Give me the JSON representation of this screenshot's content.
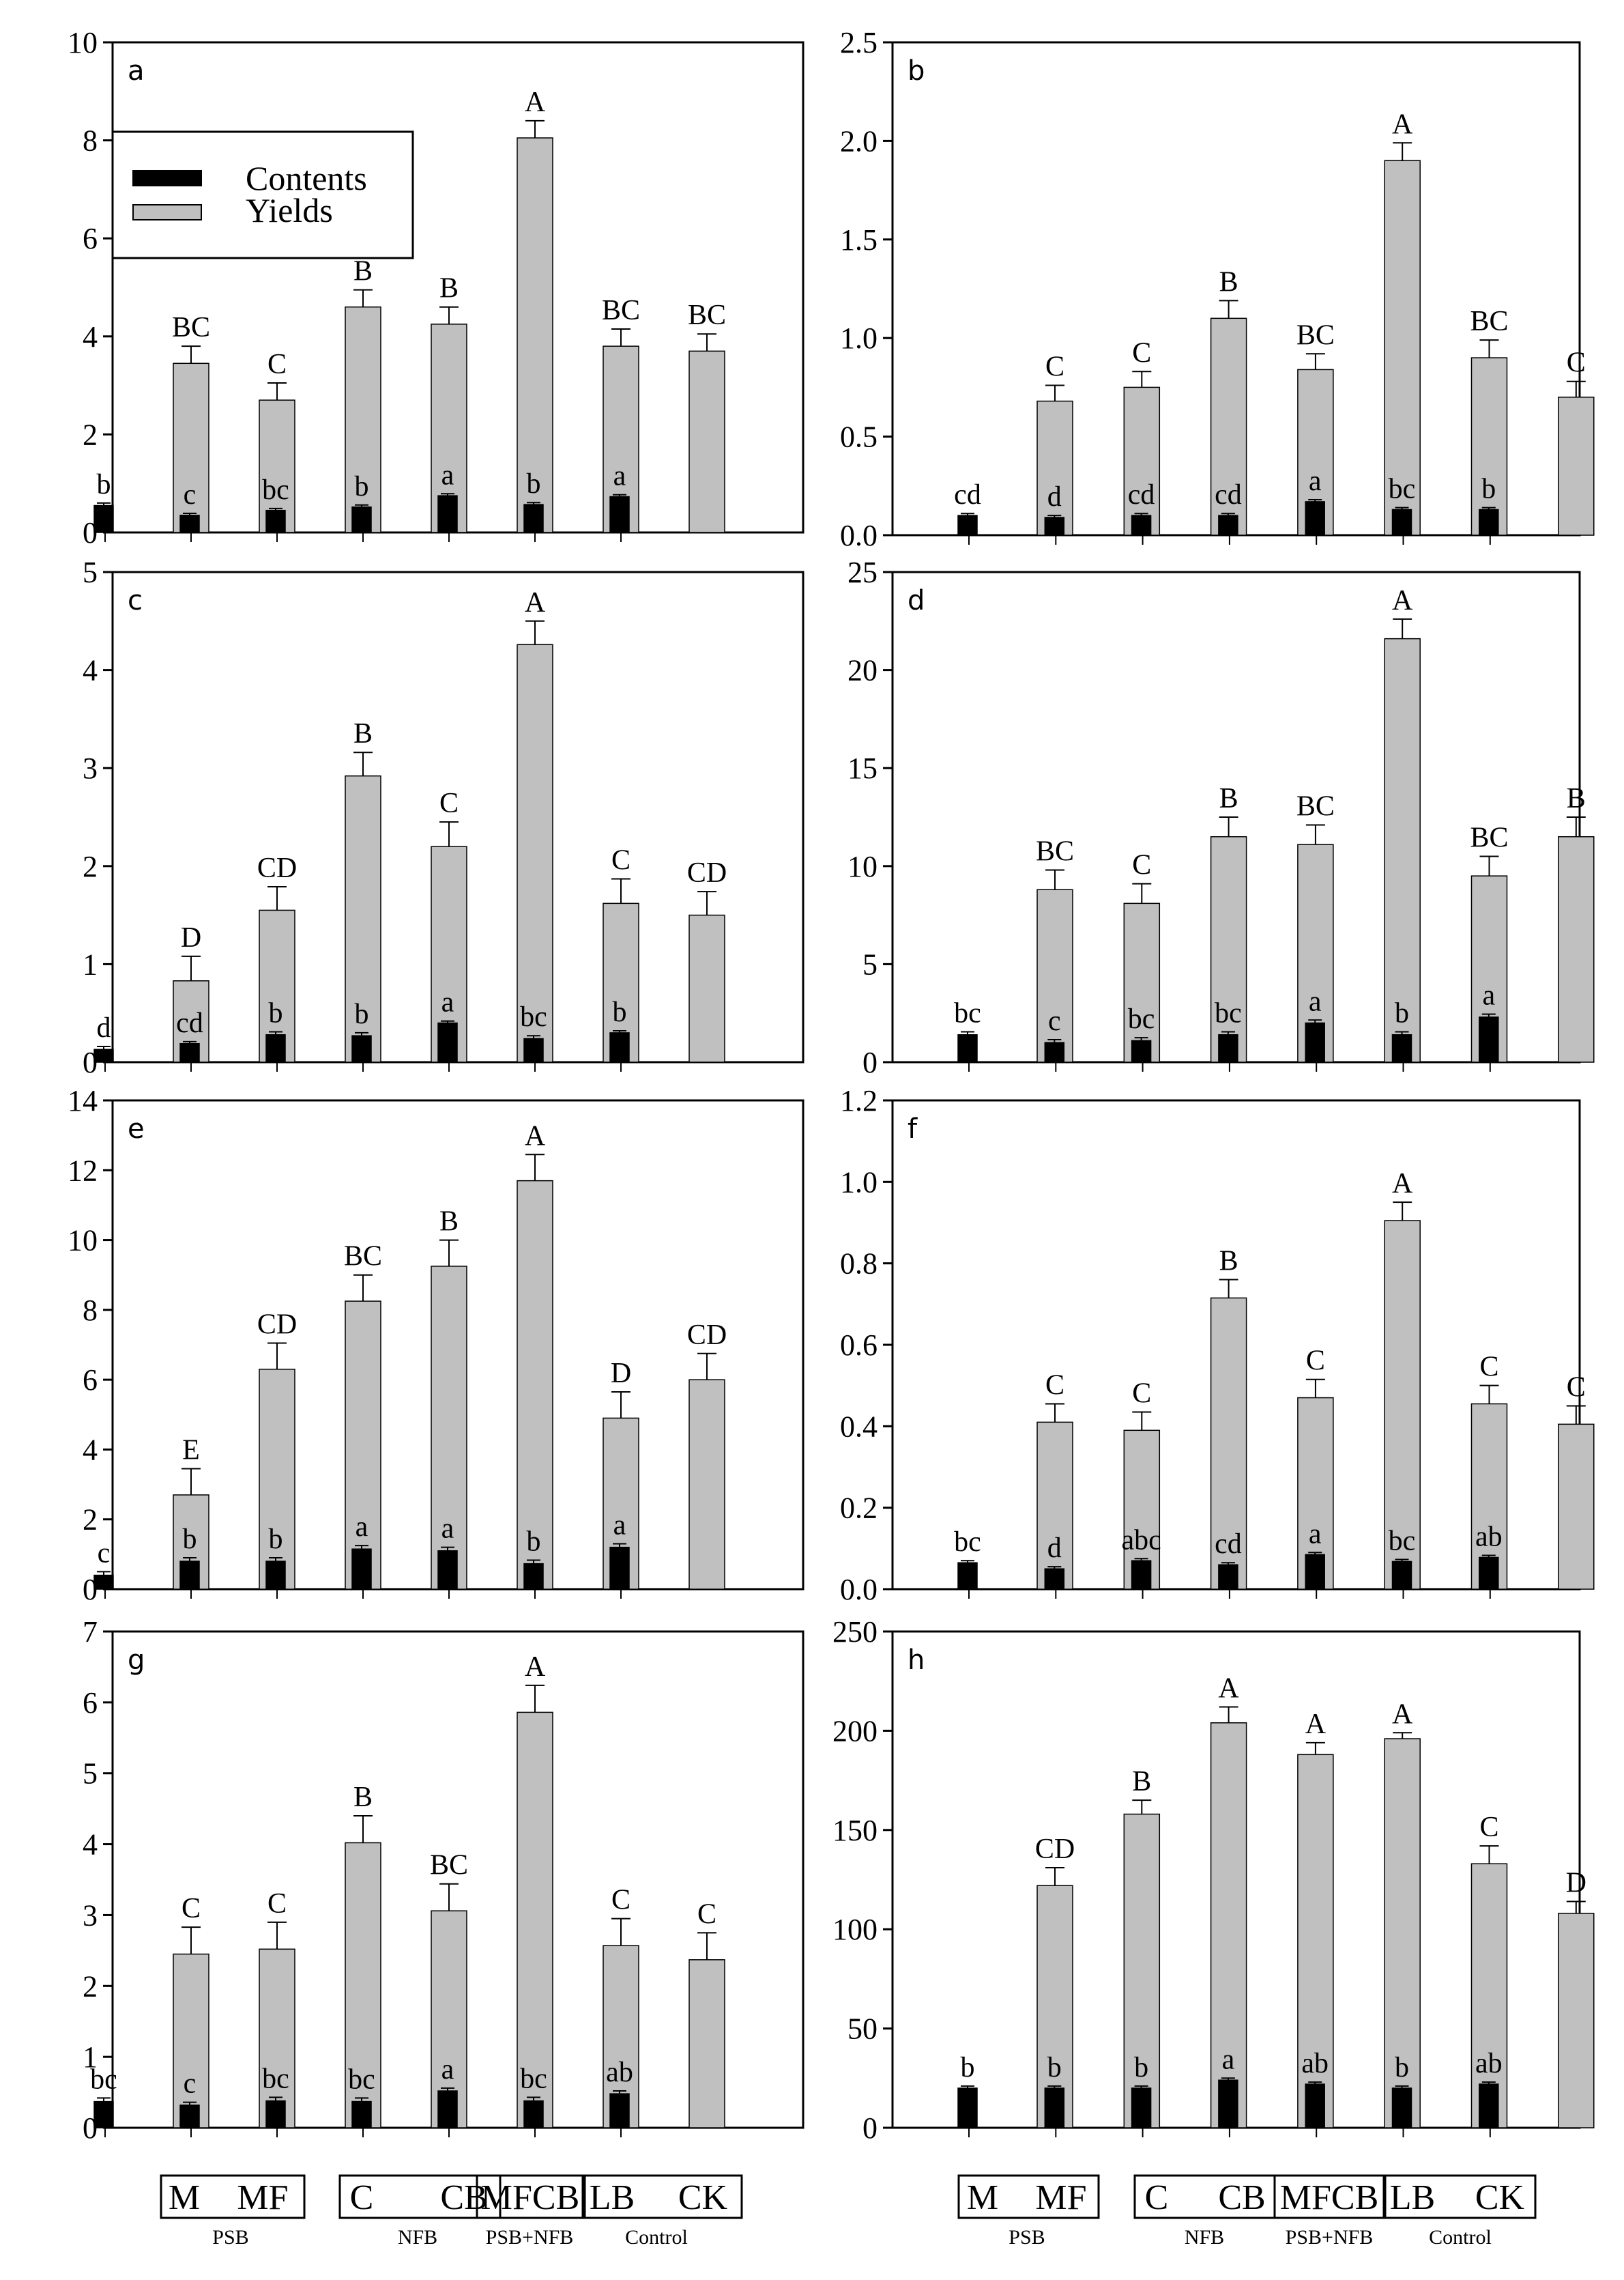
{
  "legend": {
    "contents": "Contents",
    "yields": "Yields"
  },
  "colors": {
    "contents": "#000000",
    "yields": "#c0c0c0",
    "frame": "#000000"
  },
  "treatments": [
    "M",
    "MF",
    "C",
    "CB",
    "MFCB",
    "LB",
    "CK"
  ],
  "x_axis_groups": [
    {
      "labels": [
        "M",
        "MF"
      ],
      "caption": "PSB"
    },
    {
      "labels": [
        "C",
        "CB"
      ],
      "caption": "NFB"
    },
    {
      "labels": [
        "MFCB"
      ],
      "caption": "PSB+NFB"
    },
    {
      "labels": [
        "LB",
        "CK"
      ],
      "caption": "Control"
    }
  ],
  "chart_data": [
    {
      "type": "bar",
      "panel": "a",
      "ylim": [
        0,
        10
      ],
      "yticks": [
        "0",
        "2",
        "4",
        "6",
        "8",
        "10"
      ],
      "categories": [
        "M",
        "MF",
        "C",
        "CB",
        "MFCB",
        "LB",
        "CK"
      ],
      "series": [
        {
          "name": "Contents",
          "values": [
            0.55,
            0.35,
            0.45,
            0.52,
            0.75,
            0.57,
            0.73
          ],
          "errors": [
            0.05,
            0.04,
            0.04,
            0.04,
            0.04,
            0.04,
            0.04
          ],
          "letters": [
            "b",
            "c",
            "bc",
            "b",
            "a",
            "b",
            "a"
          ]
        },
        {
          "name": "Yields",
          "values": [
            3.45,
            2.7,
            4.6,
            4.25,
            8.05,
            3.8,
            3.7
          ],
          "errors": [
            0.35,
            0.35,
            0.35,
            0.35,
            0.35,
            0.35,
            0.35
          ],
          "letters": [
            "BC",
            "C",
            "B",
            "B",
            "A",
            "BC",
            "BC"
          ]
        }
      ]
    },
    {
      "type": "bar",
      "panel": "b",
      "ylim": [
        0,
        2.5
      ],
      "yticks": [
        "0.0",
        "0.5",
        "1.0",
        "1.5",
        "2.0",
        "2.5"
      ],
      "categories": [
        "M",
        "MF",
        "C",
        "CB",
        "MFCB",
        "LB",
        "CK"
      ],
      "series": [
        {
          "name": "Contents",
          "values": [
            0.1,
            0.09,
            0.1,
            0.1,
            0.17,
            0.13,
            0.13
          ],
          "errors": [
            0.01,
            0.01,
            0.01,
            0.01,
            0.01,
            0.01,
            0.01
          ],
          "letters": [
            "cd",
            "d",
            "cd",
            "cd",
            "a",
            "bc",
            "b"
          ]
        },
        {
          "name": "Yields",
          "values": [
            0.68,
            0.75,
            1.1,
            0.84,
            1.9,
            0.9,
            0.7
          ],
          "errors": [
            0.08,
            0.08,
            0.09,
            0.08,
            0.09,
            0.09,
            0.08
          ],
          "letters": [
            "C",
            "C",
            "B",
            "BC",
            "A",
            "BC",
            "C"
          ]
        }
      ]
    },
    {
      "type": "bar",
      "panel": "c",
      "ylim": [
        0,
        5
      ],
      "yticks": [
        "0",
        "1",
        "2",
        "3",
        "4",
        "5"
      ],
      "categories": [
        "M",
        "MF",
        "C",
        "CB",
        "MFCB",
        "LB",
        "CK"
      ],
      "series": [
        {
          "name": "Contents",
          "values": [
            0.13,
            0.19,
            0.28,
            0.27,
            0.4,
            0.24,
            0.3
          ],
          "errors": [
            0.03,
            0.02,
            0.03,
            0.03,
            0.02,
            0.03,
            0.02
          ],
          "letters": [
            "d",
            "cd",
            "b",
            "b",
            "a",
            "bc",
            "b"
          ]
        },
        {
          "name": "Yields",
          "values": [
            0.83,
            1.55,
            2.92,
            2.2,
            4.26,
            1.62,
            1.5
          ],
          "errors": [
            0.25,
            0.24,
            0.24,
            0.25,
            0.24,
            0.25,
            0.24
          ],
          "letters": [
            "D",
            "CD",
            "B",
            "C",
            "A",
            "C",
            "CD"
          ]
        }
      ]
    },
    {
      "type": "bar",
      "panel": "d",
      "ylim": [
        0,
        25
      ],
      "yticks": [
        "0",
        "5",
        "10",
        "15",
        "20",
        "25"
      ],
      "categories": [
        "M",
        "MF",
        "C",
        "CB",
        "MFCB",
        "LB",
        "CK"
      ],
      "series": [
        {
          "name": "Contents",
          "values": [
            1.4,
            1.0,
            1.1,
            1.4,
            2.0,
            1.4,
            2.3
          ],
          "errors": [
            0.15,
            0.15,
            0.15,
            0.15,
            0.15,
            0.15,
            0.15
          ],
          "letters": [
            "bc",
            "c",
            "bc",
            "bc",
            "a",
            "b",
            "a"
          ]
        },
        {
          "name": "Yields",
          "values": [
            8.8,
            8.1,
            11.5,
            11.1,
            21.6,
            9.5,
            11.5
          ],
          "errors": [
            1.0,
            1.0,
            1.0,
            1.0,
            1.0,
            1.0,
            1.0
          ],
          "letters": [
            "BC",
            "C",
            "B",
            "BC",
            "A",
            "BC",
            "B"
          ]
        }
      ]
    },
    {
      "type": "bar",
      "panel": "e",
      "ylim": [
        0,
        14
      ],
      "yticks": [
        "0",
        "2",
        "4",
        "6",
        "8",
        "10",
        "12",
        "14"
      ],
      "categories": [
        "M",
        "MF",
        "C",
        "CB",
        "MFCB",
        "LB",
        "CK"
      ],
      "series": [
        {
          "name": "Contents",
          "values": [
            0.4,
            0.8,
            0.8,
            1.15,
            1.1,
            0.73,
            1.2
          ],
          "errors": [
            0.1,
            0.1,
            0.1,
            0.1,
            0.1,
            0.1,
            0.1
          ],
          "letters": [
            "c",
            "b",
            "b",
            "a",
            "a",
            "b",
            "a"
          ]
        },
        {
          "name": "Yields",
          "values": [
            2.7,
            6.3,
            8.25,
            9.25,
            11.7,
            4.9,
            6.0
          ],
          "errors": [
            0.75,
            0.75,
            0.75,
            0.75,
            0.75,
            0.75,
            0.75
          ],
          "letters": [
            "E",
            "CD",
            "BC",
            "B",
            "A",
            "D",
            "CD"
          ]
        }
      ]
    },
    {
      "type": "bar",
      "panel": "f",
      "ylim": [
        0,
        1.2
      ],
      "yticks": [
        "0.0",
        "0.2",
        "0.4",
        "0.6",
        "0.8",
        "1.0",
        "1.2"
      ],
      "categories": [
        "M",
        "MF",
        "C",
        "CB",
        "MFCB",
        "LB",
        "CK"
      ],
      "series": [
        {
          "name": "Contents",
          "values": [
            0.065,
            0.05,
            0.07,
            0.06,
            0.085,
            0.068,
            0.078
          ],
          "errors": [
            0.005,
            0.005,
            0.005,
            0.005,
            0.005,
            0.005,
            0.005
          ],
          "letters": [
            "bc",
            "d",
            "abc",
            "cd",
            "a",
            "bc",
            "ab"
          ]
        },
        {
          "name": "Yields",
          "values": [
            0.41,
            0.39,
            0.715,
            0.47,
            0.905,
            0.455,
            0.405
          ],
          "errors": [
            0.045,
            0.045,
            0.045,
            0.045,
            0.045,
            0.045,
            0.045
          ],
          "letters": [
            "C",
            "C",
            "B",
            "C",
            "A",
            "C",
            "C"
          ]
        }
      ]
    },
    {
      "type": "bar",
      "panel": "g",
      "ylim": [
        0,
        7
      ],
      "yticks": [
        "0",
        "1",
        "2",
        "3",
        "4",
        "5",
        "6",
        "7"
      ],
      "categories": [
        "M",
        "MF",
        "C",
        "CB",
        "MFCB",
        "LB",
        "CK"
      ],
      "series": [
        {
          "name": "Contents",
          "values": [
            0.37,
            0.32,
            0.38,
            0.37,
            0.52,
            0.38,
            0.48
          ],
          "errors": [
            0.05,
            0.04,
            0.05,
            0.05,
            0.04,
            0.05,
            0.04
          ],
          "letters": [
            "bc",
            "c",
            "bc",
            "bc",
            "a",
            "bc",
            "ab"
          ]
        },
        {
          "name": "Yields",
          "values": [
            2.45,
            2.52,
            4.02,
            3.06,
            5.86,
            2.57,
            2.37
          ],
          "errors": [
            0.38,
            0.38,
            0.38,
            0.38,
            0.38,
            0.38,
            0.38
          ],
          "letters": [
            "C",
            "C",
            "B",
            "BC",
            "A",
            "C",
            "C"
          ]
        }
      ]
    },
    {
      "type": "bar",
      "panel": "h",
      "ylim": [
        0,
        250
      ],
      "yticks": [
        "0",
        "50",
        "100",
        "150",
        "200",
        "250"
      ],
      "categories": [
        "M",
        "MF",
        "C",
        "CB",
        "MFCB",
        "LB",
        "CK"
      ],
      "series": [
        {
          "name": "Contents",
          "values": [
            20,
            20,
            20,
            24,
            22,
            20,
            22
          ],
          "errors": [
            1,
            1,
            1,
            1,
            1,
            1,
            1
          ],
          "letters": [
            "b",
            "b",
            "b",
            "a",
            "ab",
            "b",
            "ab"
          ]
        },
        {
          "name": "Yields",
          "values": [
            122,
            158,
            204,
            188,
            196,
            133,
            108
          ],
          "errors": [
            9,
            7,
            8,
            6,
            3,
            9,
            6
          ],
          "letters": [
            "CD",
            "B",
            "A",
            "A",
            "A",
            "C",
            "D"
          ]
        }
      ]
    }
  ]
}
